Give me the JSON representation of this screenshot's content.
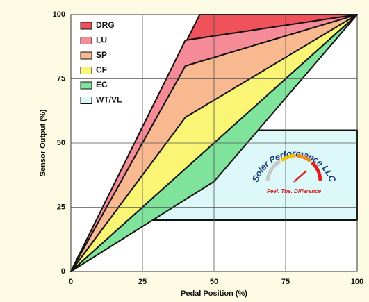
{
  "chart_data": {
    "type": "area",
    "xlabel": "Pedal Position (%)",
    "ylabel": "Sensor Output (%)",
    "xlim": [
      0,
      100
    ],
    "ylim": [
      0,
      100
    ],
    "xticks": [
      0,
      25,
      50,
      75,
      100
    ],
    "yticks": [
      0,
      25,
      50,
      75,
      100
    ],
    "grid": true,
    "legend": "upper left",
    "series": [
      {
        "name": "WT/VL",
        "color": "#dcf8f8",
        "x": [
          20,
          100,
          100,
          55
        ],
        "values": [
          20,
          20,
          55,
          55
        ]
      },
      {
        "name": "DRG",
        "color": "#f0525b",
        "x": [
          0,
          45,
          100,
          40
        ],
        "values": [
          0,
          100,
          100,
          90
        ]
      },
      {
        "name": "LU",
        "color": "#f48b97",
        "x": [
          0,
          40,
          100,
          40
        ],
        "values": [
          0,
          90,
          100,
          80
        ]
      },
      {
        "name": "SP",
        "color": "#f9b990",
        "x": [
          0,
          40,
          100,
          40
        ],
        "values": [
          0,
          80,
          100,
          60
        ]
      },
      {
        "name": "CF",
        "color": "#fbf576",
        "x": [
          0,
          40,
          100
        ],
        "values": [
          0,
          60,
          100
        ]
      },
      {
        "name": "EC",
        "color": "#7fe39c",
        "x": [
          0,
          100,
          50
        ],
        "values": [
          0,
          100,
          35
        ]
      }
    ],
    "legend_order": [
      1,
      2,
      3,
      4,
      5,
      0
    ],
    "logo": {
      "name": "Soler Performance LLC",
      "tagline": "Feel. The. Difference"
    }
  }
}
